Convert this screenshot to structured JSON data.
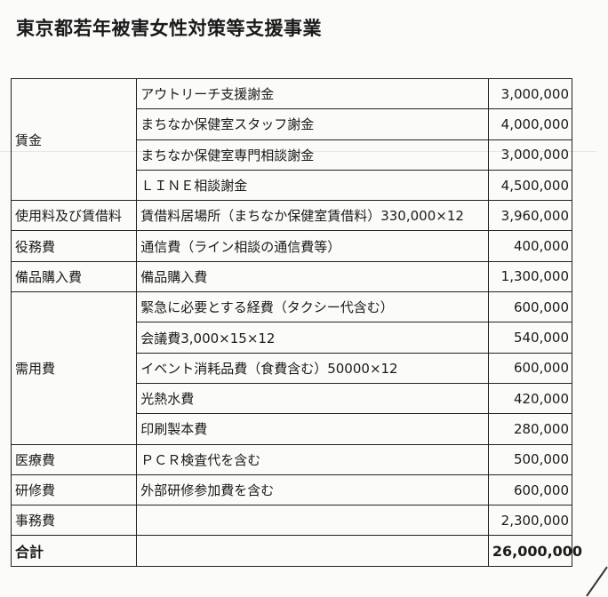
{
  "title": "東京都若年被害女性対策等支援事業",
  "groups": [
    {
      "category": "賃金",
      "items": [
        {
          "description": "アウトリーチ支援謝金",
          "amount": "3,000,000"
        },
        {
          "description": "まちなか保健室スタッフ謝金",
          "amount": "4,000,000"
        },
        {
          "description": "まちなか保健室専門相談謝金",
          "amount": "3,000,000"
        },
        {
          "description": "ＬＩＮＥ相談謝金",
          "amount": "4,500,000"
        }
      ]
    },
    {
      "category": "使用料及び賃借料",
      "items": [
        {
          "description": "賃借料居場所（まちなか保健室賃借料）330,000×12",
          "amount": "3,960,000"
        }
      ]
    },
    {
      "category": "役務費",
      "items": [
        {
          "description": "通信費（ライン相談の通信費等）",
          "amount": "400,000"
        }
      ]
    },
    {
      "category": "備品購入費",
      "items": [
        {
          "description": "備品購入費",
          "amount": "1,300,000"
        }
      ]
    },
    {
      "category": "需用費",
      "items": [
        {
          "description": "緊急に必要とする経費（タクシー代含む）",
          "amount": "600,000"
        },
        {
          "description": "会議費3,000×15×12",
          "amount": "540,000"
        },
        {
          "description": "イベント消耗品費（食費含む）50000×12",
          "amount": "600,000"
        },
        {
          "description": "光熱水費",
          "amount": "420,000"
        },
        {
          "description": "印刷製本費",
          "amount": "280,000"
        }
      ]
    },
    {
      "category": "医療費",
      "items": [
        {
          "description": "ＰＣＲ検査代を含む",
          "amount": "500,000"
        }
      ]
    },
    {
      "category": "研修費",
      "items": [
        {
          "description": "外部研修参加費を含む",
          "amount": "600,000"
        }
      ]
    },
    {
      "category": "事務費",
      "items": [
        {
          "description": "",
          "amount": "2,300,000"
        }
      ]
    }
  ],
  "total": {
    "label": "合計",
    "amount": "26,000,000"
  }
}
